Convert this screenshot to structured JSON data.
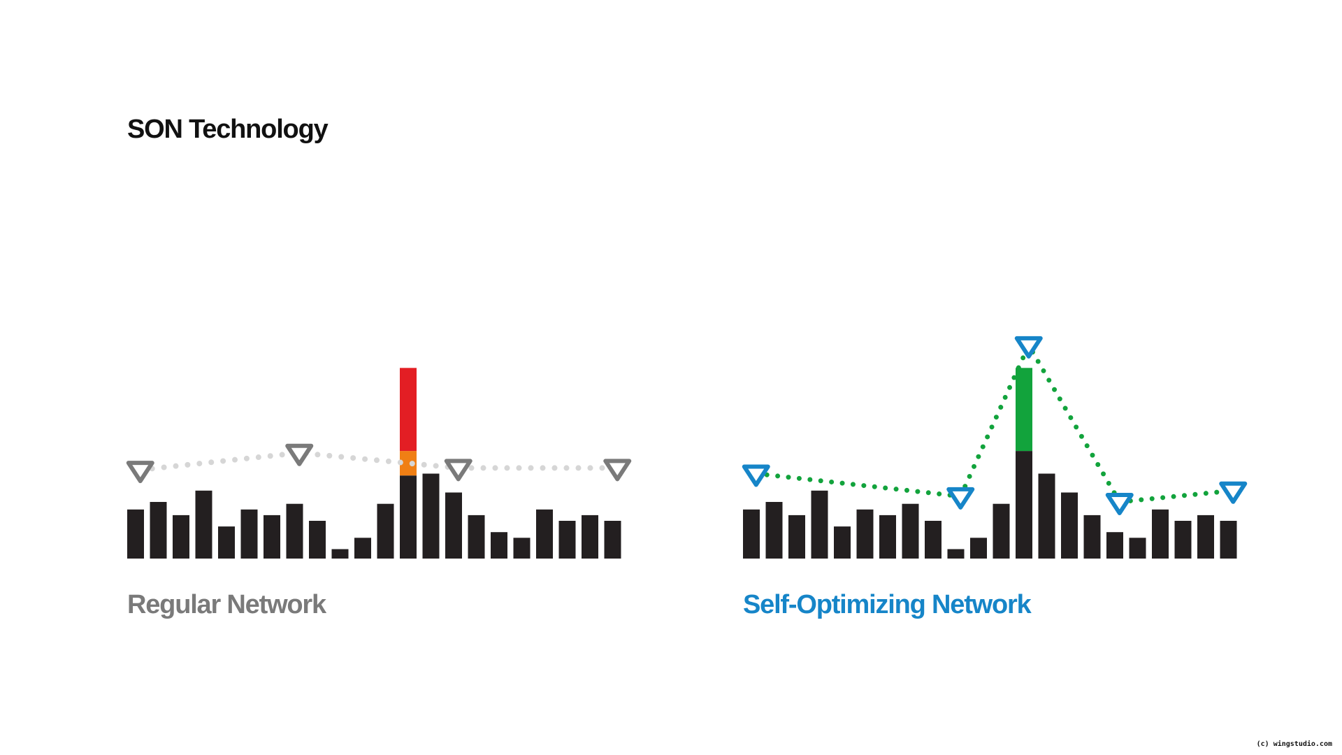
{
  "title": "SON Technology",
  "credit": "(c) wingstudio.com",
  "colors": {
    "bar": "#231f20",
    "overload_red": "#e31e24",
    "overload_orange": "#f07f14",
    "boost_green": "#12a33c",
    "regular_marker": "#7a7a7a",
    "regular_line": "#d6d6d6",
    "son_marker": "#1685c8",
    "son_line": "#12a33c",
    "regular_label": "#7a7a7a",
    "son_label": "#1685c8"
  },
  "chart_data": [
    {
      "type": "bar",
      "label": "Regular Network",
      "values": [
        26,
        30,
        23,
        36,
        17,
        26,
        23,
        29,
        20,
        5,
        11,
        29,
        44,
        45,
        35,
        23,
        14,
        11,
        26,
        20,
        23,
        20
      ],
      "overlay_bar": {
        "index": 12,
        "segments": [
          {
            "from": 44,
            "to": 57,
            "color": "overload_orange"
          },
          {
            "from": 57,
            "to": 101,
            "color": "overload_red"
          }
        ]
      },
      "coverage_line": {
        "style": "dotted",
        "color": "regular_line",
        "marker_color": "regular_marker",
        "points": [
          {
            "bar": 0.3,
            "level": 47
          },
          {
            "bar": 7.3,
            "level": 56
          },
          {
            "bar": 14.3,
            "level": 48
          },
          {
            "bar": 21.3,
            "level": 48
          }
        ]
      }
    },
    {
      "type": "bar",
      "label": "Self-Optimizing Network",
      "values": [
        26,
        30,
        23,
        36,
        17,
        26,
        23,
        29,
        20,
        5,
        11,
        29,
        57,
        45,
        35,
        23,
        14,
        11,
        26,
        20,
        23,
        20
      ],
      "overlay_bar": {
        "index": 12,
        "segments": [
          {
            "from": 57,
            "to": 101,
            "color": "boost_green"
          }
        ]
      },
      "coverage_line": {
        "style": "dotted",
        "color": "son_line",
        "marker_color": "son_marker",
        "points": [
          {
            "bar": 0.3,
            "level": 45
          },
          {
            "bar": 9.3,
            "level": 33
          },
          {
            "bar": 12.3,
            "level": 113
          },
          {
            "bar": 16.3,
            "level": 30
          },
          {
            "bar": 21.3,
            "level": 36
          }
        ]
      }
    }
  ]
}
